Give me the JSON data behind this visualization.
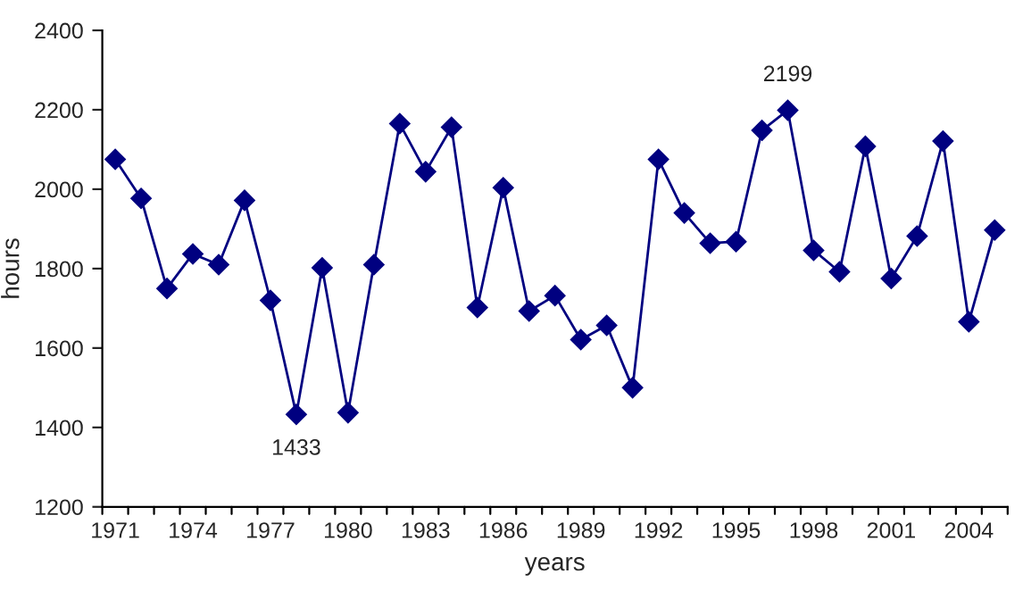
{
  "chart_data": {
    "type": "line",
    "xlabel": "years",
    "ylabel": "hours",
    "x": [
      1971,
      1972,
      1973,
      1974,
      1975,
      1976,
      1977,
      1978,
      1979,
      1980,
      1981,
      1982,
      1983,
      1984,
      1985,
      1986,
      1987,
      1988,
      1989,
      1990,
      1991,
      1992,
      1993,
      1994,
      1995,
      1996,
      1997,
      1998,
      1999,
      2000,
      2001,
      2002,
      2003,
      2004,
      2005
    ],
    "series": [
      {
        "color": "#000080",
        "values": [
          2075,
          1977,
          1750,
          1837,
          1810,
          1972,
          1720,
          1433,
          1802,
          1437,
          1810,
          2165,
          2044,
          2156,
          1702,
          2004,
          1693,
          1732,
          1621,
          1657,
          1500,
          2075,
          1940,
          1864,
          1868,
          2148,
          2199,
          1846,
          1792,
          2108,
          1775,
          1882,
          2121,
          1666,
          1897
        ]
      }
    ],
    "xlim": [
      1970.5,
      2005.5
    ],
    "xticks": [
      1971,
      1974,
      1977,
      1980,
      1983,
      1986,
      1989,
      1992,
      1995,
      1998,
      2001,
      2004
    ],
    "ylim": [
      1200,
      2400
    ],
    "yticks": [
      1200,
      1400,
      1600,
      1800,
      2000,
      2200,
      2400
    ],
    "marker": "diamond",
    "line_style": "solid",
    "grid": false,
    "legend": false,
    "annotations": [
      {
        "text": "1433",
        "x": 1978,
        "y": 1433
      },
      {
        "text": "2199",
        "x": 1997,
        "y": 2199
      }
    ]
  }
}
